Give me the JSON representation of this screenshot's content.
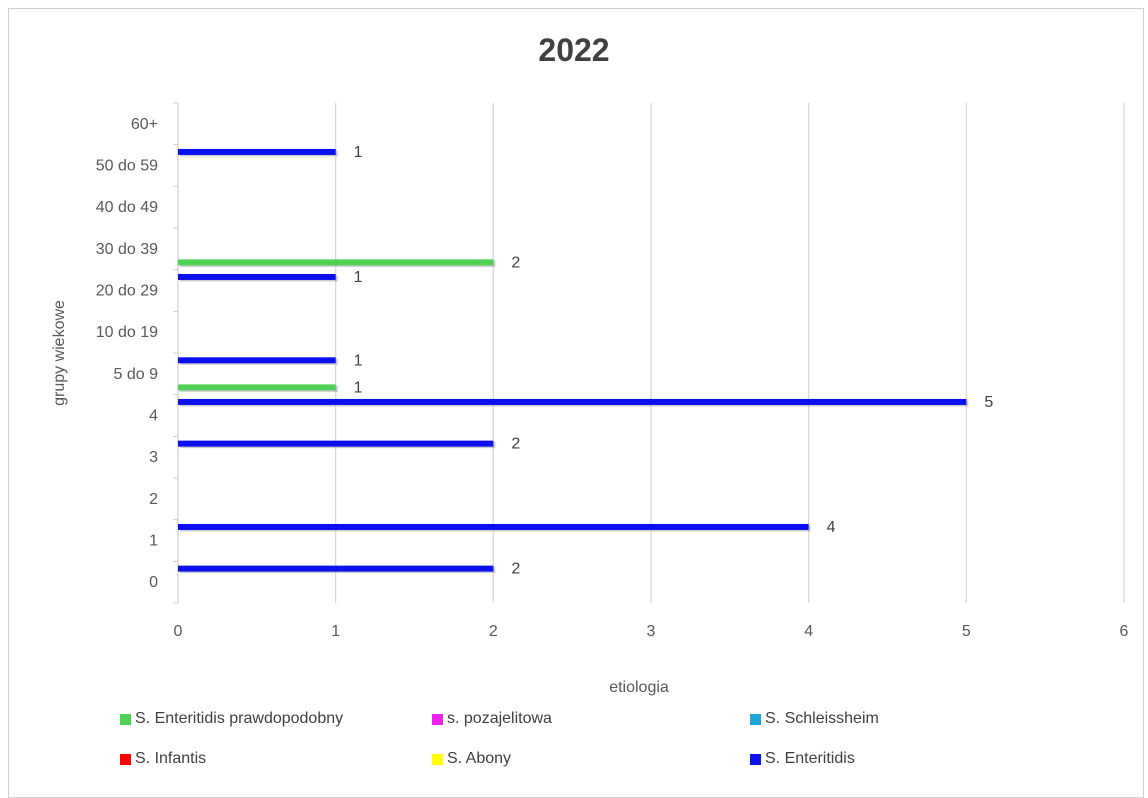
{
  "chart_data": {
    "type": "bar",
    "orientation": "horizontal",
    "title": "2022",
    "xlabel": "etiologia",
    "ylabel": "grupy wiekowe",
    "xlim": [
      0,
      6
    ],
    "x_ticks": [
      "0",
      "1",
      "2",
      "3",
      "4",
      "5",
      "6"
    ],
    "categories": [
      "0",
      "1",
      "2",
      "3",
      "4",
      "5 do 9",
      "10 do 19",
      "20 do 29",
      "30 do 39",
      "40 do 49",
      "50 do 59",
      "60+"
    ],
    "series": [
      {
        "name": "S. Enteritidis prawdopodobny",
        "color": "#4fd156",
        "values": [
          null,
          null,
          null,
          null,
          null,
          1,
          null,
          null,
          2,
          null,
          null,
          null
        ]
      },
      {
        "name": "s. pozajelitowa",
        "color": "#ee22ee",
        "values": [
          null,
          null,
          null,
          null,
          null,
          null,
          null,
          null,
          null,
          null,
          null,
          null
        ]
      },
      {
        "name": "S. Schleissheim",
        "color": "#1ea7dc",
        "values": [
          null,
          null,
          null,
          null,
          null,
          null,
          null,
          null,
          null,
          null,
          null,
          null
        ]
      },
      {
        "name": "S. Infantis",
        "color": "#ff0000",
        "values": [
          null,
          null,
          null,
          null,
          null,
          null,
          null,
          null,
          null,
          null,
          null,
          null
        ]
      },
      {
        "name": "S. Abony",
        "color": "#ffff00",
        "values": [
          null,
          null,
          null,
          null,
          null,
          null,
          null,
          null,
          null,
          null,
          null,
          null
        ]
      },
      {
        "name": "S. Enteritidis",
        "color": "#0a10f0",
        "values": [
          2,
          4,
          null,
          2,
          5,
          1,
          null,
          1,
          null,
          null,
          1,
          null
        ]
      }
    ],
    "legend_position": "bottom",
    "gridlines": "vertical"
  }
}
